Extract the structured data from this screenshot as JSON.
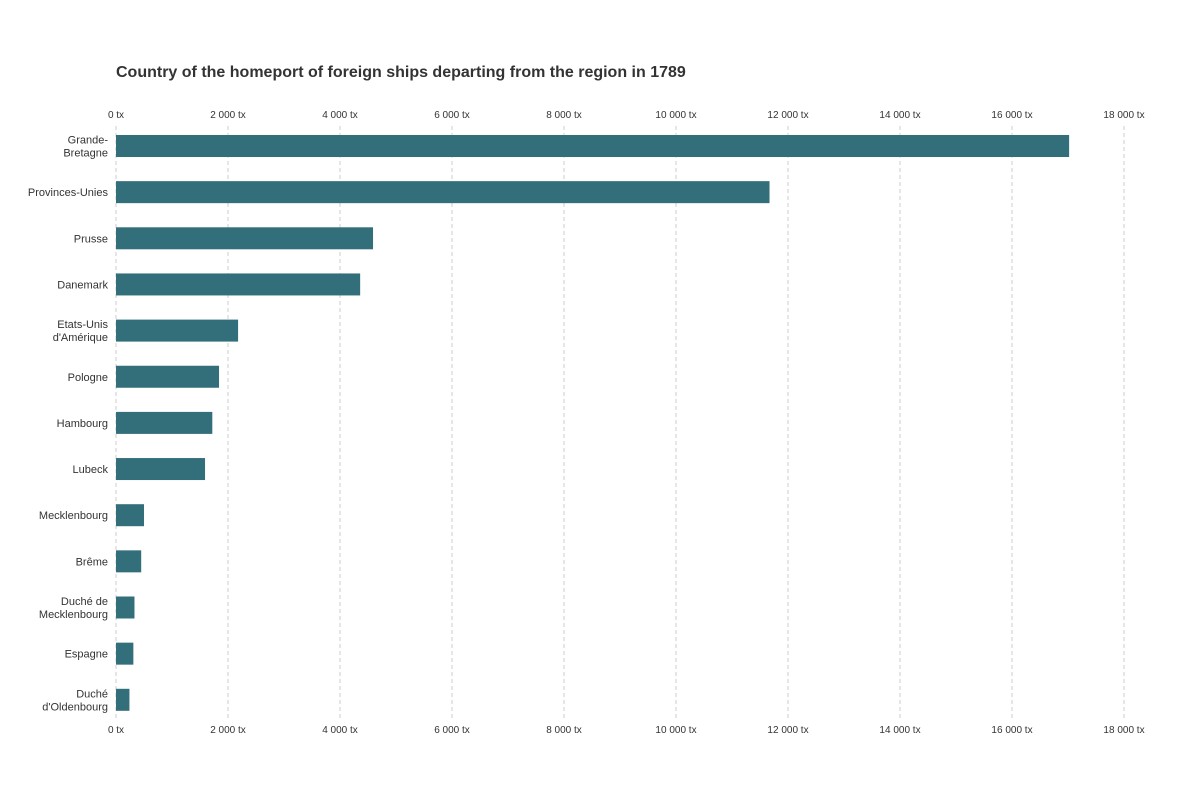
{
  "chart_data": {
    "type": "bar",
    "orientation": "horizontal",
    "title": "Country of the homeport of foreign ships departing from the region in 1789",
    "xlabel": "",
    "ylabel": "",
    "categories": [
      [
        "Grande-",
        "Bretagne"
      ],
      [
        "Provinces-Unies"
      ],
      [
        "Prusse"
      ],
      [
        "Danemark"
      ],
      [
        "Etats-Unis",
        "d'Amérique"
      ],
      [
        "Pologne"
      ],
      [
        "Hambourg"
      ],
      [
        "Lubeck"
      ],
      [
        "Mecklenbourg"
      ],
      [
        "Brême"
      ],
      [
        "Duché de",
        "Mecklenbourg"
      ],
      [
        "Espagne"
      ],
      [
        "Duché",
        "d'Oldenbourg"
      ]
    ],
    "values": [
      17020,
      11670,
      4590,
      4360,
      2180,
      1840,
      1720,
      1590,
      500,
      450,
      330,
      310,
      240
    ],
    "xlim": [
      0,
      18000
    ],
    "xticks": [
      0,
      2000,
      4000,
      6000,
      8000,
      10000,
      12000,
      14000,
      16000,
      18000
    ],
    "xtick_labels": [
      "0 tx",
      "2 000 tx",
      "4 000 tx",
      "6 000 tx",
      "8 000 tx",
      "10 000 tx",
      "12 000 tx",
      "14 000 tx",
      "16 000 tx",
      "18 000 tx"
    ],
    "axis_labels_position": "top and bottom",
    "grid": true,
    "grid_style": "dashed vertical",
    "bar_color": "#336e7b",
    "legend": false
  }
}
